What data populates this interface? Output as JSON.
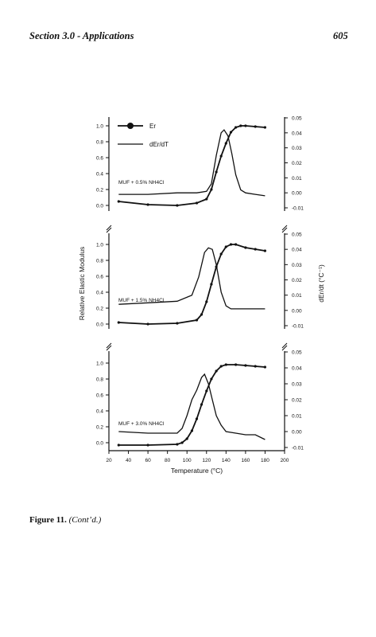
{
  "header": {
    "section": "Section 3.0 - Applications",
    "page_number": "605"
  },
  "caption": {
    "label": "Figure 11.",
    "note": "(Cont’d.)"
  },
  "chart_data": [
    {
      "type": "line",
      "annotation": "MUF + 0.5% NH4Cl",
      "legend": [
        "Er",
        "dEr/dT"
      ],
      "ylabel_left": "Relative Elastic Modulus",
      "ylabel_right": "dEr/dt (°C⁻¹)",
      "xlabel": "Temperature (°C)",
      "xlim": [
        20,
        200
      ],
      "ylim_left": [
        0.0,
        1.0
      ],
      "ylim_right": [
        -0.01,
        0.05
      ],
      "series": [
        {
          "name": "Er",
          "x": [
            30,
            60,
            90,
            110,
            120,
            125,
            130,
            135,
            140,
            145,
            150,
            155,
            160,
            170,
            180
          ],
          "y": [
            0.05,
            0.01,
            0.0,
            0.03,
            0.08,
            0.2,
            0.42,
            0.62,
            0.78,
            0.92,
            0.98,
            1.0,
            1.0,
            0.99,
            0.98
          ]
        },
        {
          "name": "dEr/dT",
          "x": [
            30,
            60,
            90,
            110,
            120,
            125,
            130,
            135,
            138,
            142,
            146,
            150,
            155,
            160,
            170,
            180
          ],
          "y": [
            -0.001,
            -0.001,
            0.0,
            0.0,
            0.001,
            0.006,
            0.025,
            0.04,
            0.042,
            0.038,
            0.026,
            0.012,
            0.002,
            0.0,
            -0.001,
            -0.002
          ]
        }
      ]
    },
    {
      "type": "line",
      "annotation": "MUF + 1.5% NH4Cl",
      "legend": [],
      "ylabel_left": "Relative Elastic Modulus",
      "ylabel_right": "dEr/dt (°C⁻¹)",
      "xlabel": "Temperature (°C)",
      "xlim": [
        20,
        200
      ],
      "ylim_left": [
        0.0,
        1.0
      ],
      "ylim_right": [
        -0.01,
        0.05
      ],
      "series": [
        {
          "name": "Er",
          "x": [
            30,
            60,
            90,
            110,
            115,
            120,
            125,
            130,
            135,
            140,
            145,
            150,
            160,
            170,
            180
          ],
          "y": [
            0.02,
            0.0,
            0.01,
            0.05,
            0.12,
            0.28,
            0.5,
            0.72,
            0.88,
            0.97,
            1.0,
            1.0,
            0.96,
            0.94,
            0.92
          ]
        },
        {
          "name": "dEr/dT",
          "x": [
            30,
            60,
            90,
            105,
            112,
            118,
            122,
            126,
            130,
            135,
            140,
            145,
            150,
            160,
            170,
            180
          ],
          "y": [
            0.004,
            0.005,
            0.006,
            0.01,
            0.022,
            0.038,
            0.041,
            0.04,
            0.03,
            0.012,
            0.003,
            0.001,
            0.001,
            0.001,
            0.001,
            0.001
          ]
        }
      ]
    },
    {
      "type": "line",
      "annotation": "MUF + 3.0% NH4Cl",
      "legend": [],
      "ylabel_left": "Relative Elastic Modulus",
      "ylabel_right": "dEr/dt (°C⁻¹)",
      "xlabel": "Temperature (°C)",
      "xlim": [
        20,
        200
      ],
      "ylim_left": [
        0.0,
        1.0
      ],
      "ylim_right": [
        -0.01,
        0.05
      ],
      "series": [
        {
          "name": "Er",
          "x": [
            30,
            60,
            90,
            95,
            100,
            105,
            110,
            115,
            120,
            125,
            130,
            135,
            140,
            150,
            160,
            170,
            180
          ],
          "y": [
            -0.03,
            -0.03,
            -0.02,
            0.0,
            0.05,
            0.15,
            0.3,
            0.48,
            0.65,
            0.8,
            0.9,
            0.96,
            0.98,
            0.98,
            0.97,
            0.96,
            0.95
          ]
        },
        {
          "name": "dEr/dT",
          "x": [
            30,
            60,
            90,
            95,
            100,
            105,
            110,
            115,
            118,
            122,
            126,
            130,
            135,
            140,
            150,
            160,
            170,
            180
          ],
          "y": [
            0.0,
            -0.001,
            -0.001,
            0.002,
            0.01,
            0.02,
            0.026,
            0.034,
            0.036,
            0.03,
            0.02,
            0.01,
            0.004,
            0.0,
            -0.001,
            -0.002,
            -0.002,
            -0.005
          ]
        }
      ]
    }
  ],
  "figure": {
    "ylabel_left": "Relative Elastic Modulus",
    "ylabel_right": "dEr/dt (°C⁻¹)",
    "xlabel": "Temperature (°C)",
    "x_ticks": [
      "20",
      "40",
      "60",
      "80",
      "100",
      "120",
      "140",
      "160",
      "180",
      "200"
    ],
    "y_ticks_left": [
      "0.0",
      "0.2",
      "0.4",
      "0.6",
      "0.8",
      "1.0"
    ],
    "y_ticks_right": [
      "-0.01",
      "0.00",
      "0.01",
      "0.02",
      "0.03",
      "0.04",
      "0.05"
    ],
    "legend_er": "Er",
    "legend_der": "dEr/dT",
    "annotations": [
      "MUF + 0.5% NH4Cl",
      "MUF + 1.5% NH4Cl",
      "MUF + 3.0% NH4Cl"
    ],
    "line_color": "#111111"
  }
}
